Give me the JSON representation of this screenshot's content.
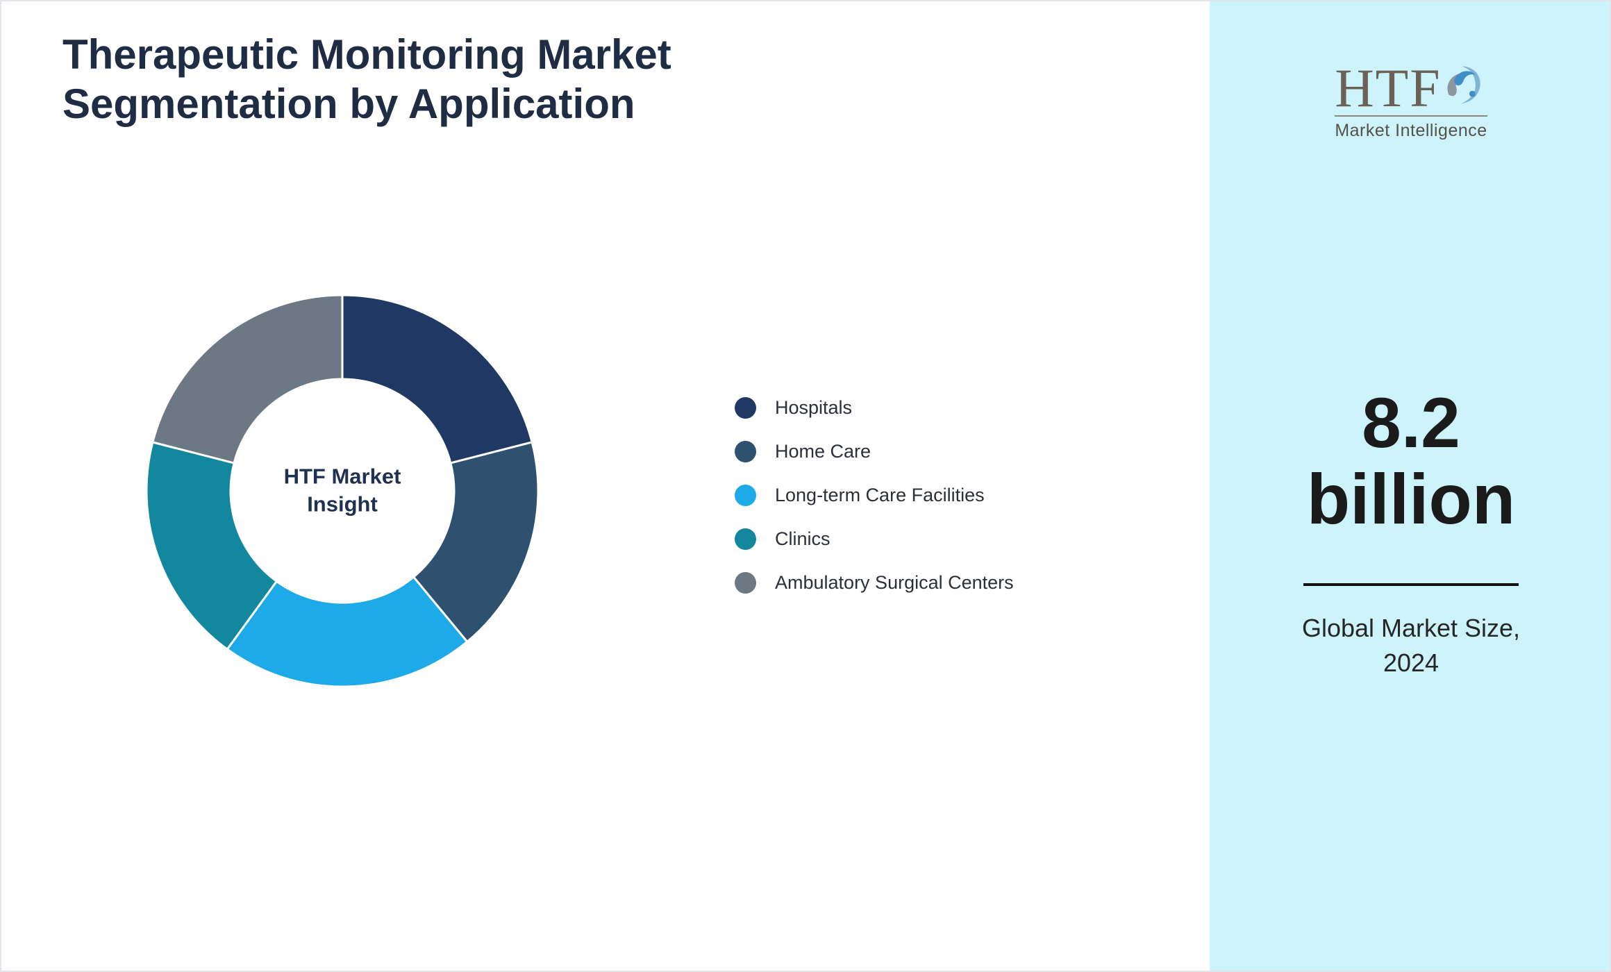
{
  "title": {
    "line1": "Therapeutic Monitoring Market",
    "line2": "Segmentation by Application"
  },
  "chart_data": {
    "type": "pie",
    "donut": true,
    "title": "Therapeutic Monitoring Market Segmentation by Application",
    "center_label": "HTF Market Insight",
    "legend_position": "right",
    "start_angle_deg": 0,
    "direction": "clockwise",
    "series": [
      {
        "name": "Hospitals",
        "value": 21,
        "color": "#1F3864"
      },
      {
        "name": "Home Care",
        "value": 18,
        "color": "#2E5170"
      },
      {
        "name": "Long-term Care Facilities",
        "value": 21,
        "color": "#1EA9E8"
      },
      {
        "name": "Clinics",
        "value": 19,
        "color": "#12879D"
      },
      {
        "name": "Ambulatory Surgical Centers",
        "value": 21,
        "color": "#6D7885"
      }
    ]
  },
  "sidebar": {
    "background": "#CDF3FB",
    "logo": {
      "text": "HTF",
      "subtext": "Market Intelligence"
    },
    "market_size": {
      "value": "8.2",
      "unit": "billion",
      "caption_line1": "Global Market Size,",
      "caption_line2": "2024"
    }
  }
}
